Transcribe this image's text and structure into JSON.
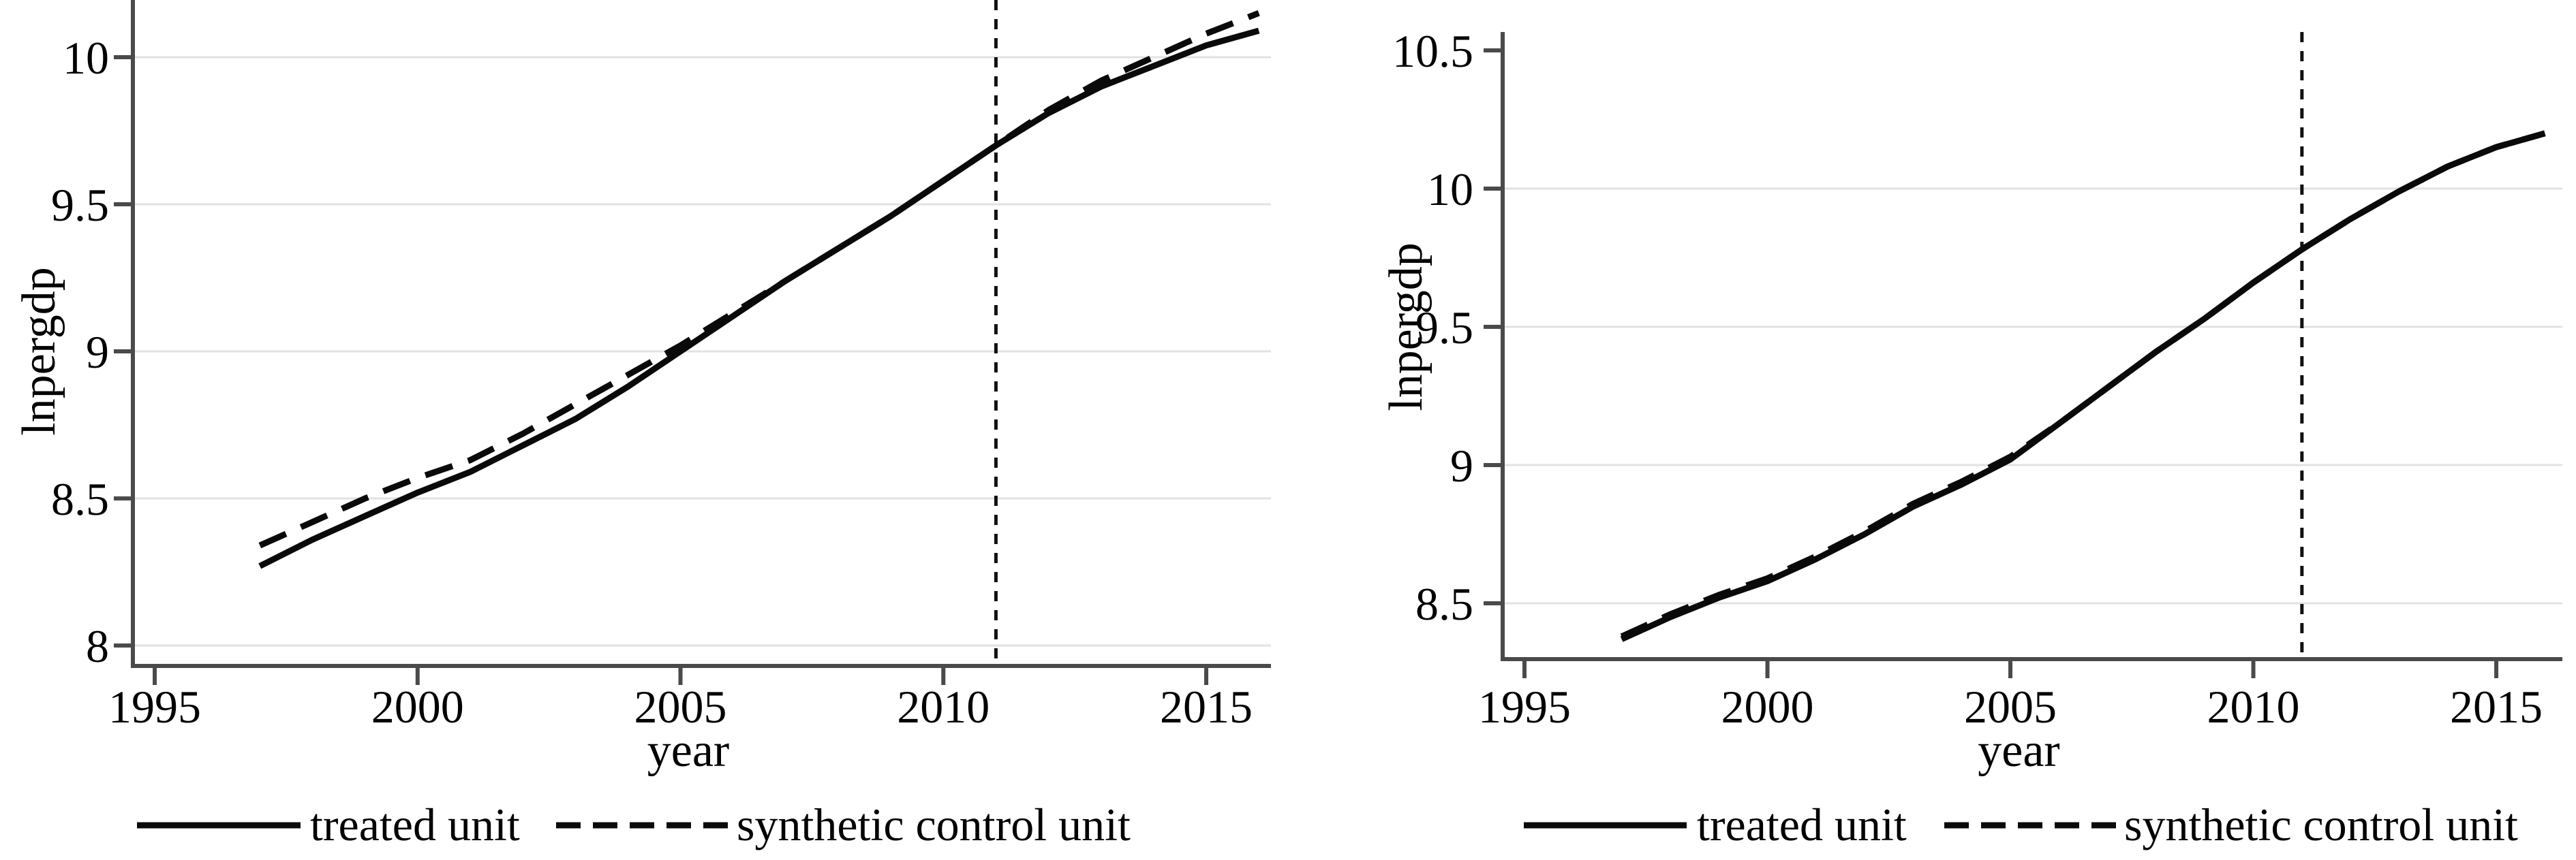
{
  "figure": {
    "background": "#ffffff",
    "description_colors": {
      "axis": "#4a4a4a",
      "grid": "#e2e2e2",
      "line": "#0a0a0a",
      "text": "#000000",
      "treatment_line": "#111111"
    }
  },
  "chart_data": [
    {
      "type": "line",
      "title": "",
      "xlabel": "year",
      "ylabel": "lnpergdp",
      "x": [
        1997,
        1998,
        1999,
        2000,
        2001,
        2002,
        2003,
        2004,
        2005,
        2006,
        2007,
        2008,
        2009,
        2010,
        2011,
        2012,
        2013,
        2014,
        2015,
        2016
      ],
      "series": [
        {
          "name": "treated unit",
          "line_style": "solid",
          "color": "#0a0a0a",
          "values": [
            8.27,
            8.36,
            8.44,
            8.52,
            8.59,
            8.68,
            8.77,
            8.88,
            9.0,
            9.12,
            9.24,
            9.35,
            9.46,
            9.58,
            9.7,
            9.81,
            9.9,
            9.97,
            10.04,
            10.09
          ]
        },
        {
          "name": "synthetic control unit",
          "line_style": "dashed",
          "color": "#0a0a0a",
          "values": [
            8.34,
            8.42,
            8.5,
            8.57,
            8.63,
            8.72,
            8.82,
            8.92,
            9.02,
            9.13,
            9.24,
            9.35,
            9.46,
            9.58,
            9.7,
            9.82,
            9.92,
            10.0,
            10.08,
            10.15
          ]
        }
      ],
      "treatment_vline": {
        "x": 2011,
        "style": "dashed"
      },
      "xticks": [
        1995,
        2000,
        2005,
        2010,
        2015
      ],
      "yticks": [
        8,
        8.5,
        9,
        9.5,
        10
      ],
      "gridline_values": [
        8,
        8.5,
        9,
        9.5,
        10
      ],
      "xlim": [
        1994.585,
        2016.231
      ],
      "ylim": [
        7.9306,
        10.1944
      ],
      "grid": true,
      "legend_position": "bottom",
      "legend": [
        "treated unit",
        "synthetic control unit"
      ]
    },
    {
      "type": "line",
      "title": "",
      "xlabel": "year",
      "ylabel": "lnpergdp",
      "x": [
        1997,
        1998,
        1999,
        2000,
        2001,
        2002,
        2003,
        2004,
        2005,
        2006,
        2007,
        2008,
        2009,
        2010,
        2011,
        2012,
        2013,
        2014,
        2015,
        2016
      ],
      "series": [
        {
          "name": "treated unit",
          "line_style": "solid",
          "color": "#0a0a0a",
          "values": [
            8.37,
            8.45,
            8.52,
            8.58,
            8.66,
            8.75,
            8.85,
            8.93,
            9.02,
            9.15,
            9.28,
            9.41,
            9.53,
            9.66,
            9.78,
            9.89,
            9.99,
            10.08,
            10.15,
            10.2
          ]
        },
        {
          "name": "synthetic control unit",
          "line_style": "dashed",
          "color": "#0a0a0a",
          "values": [
            8.38,
            8.46,
            8.53,
            8.59,
            8.67,
            8.76,
            8.86,
            8.94,
            9.03,
            9.15,
            9.28,
            9.41,
            9.53,
            9.66,
            9.78,
            9.89,
            9.99,
            10.08,
            10.15,
            10.2
          ]
        }
      ],
      "treatment_vline": {
        "x": 2011,
        "style": "dashed"
      },
      "xticks": [
        1995,
        2000,
        2005,
        2010,
        2015
      ],
      "yticks": [
        8.5,
        9,
        9.5,
        10,
        10.5
      ],
      "gridline_values": [
        8.5,
        9,
        9.5,
        10
      ],
      "xlim": [
        1994.551,
        2016.36
      ],
      "ylim": [
        8.2979,
        10.5665
      ],
      "grid": true,
      "legend_position": "bottom",
      "legend": [
        "treated unit",
        "synthetic control unit"
      ]
    }
  ]
}
